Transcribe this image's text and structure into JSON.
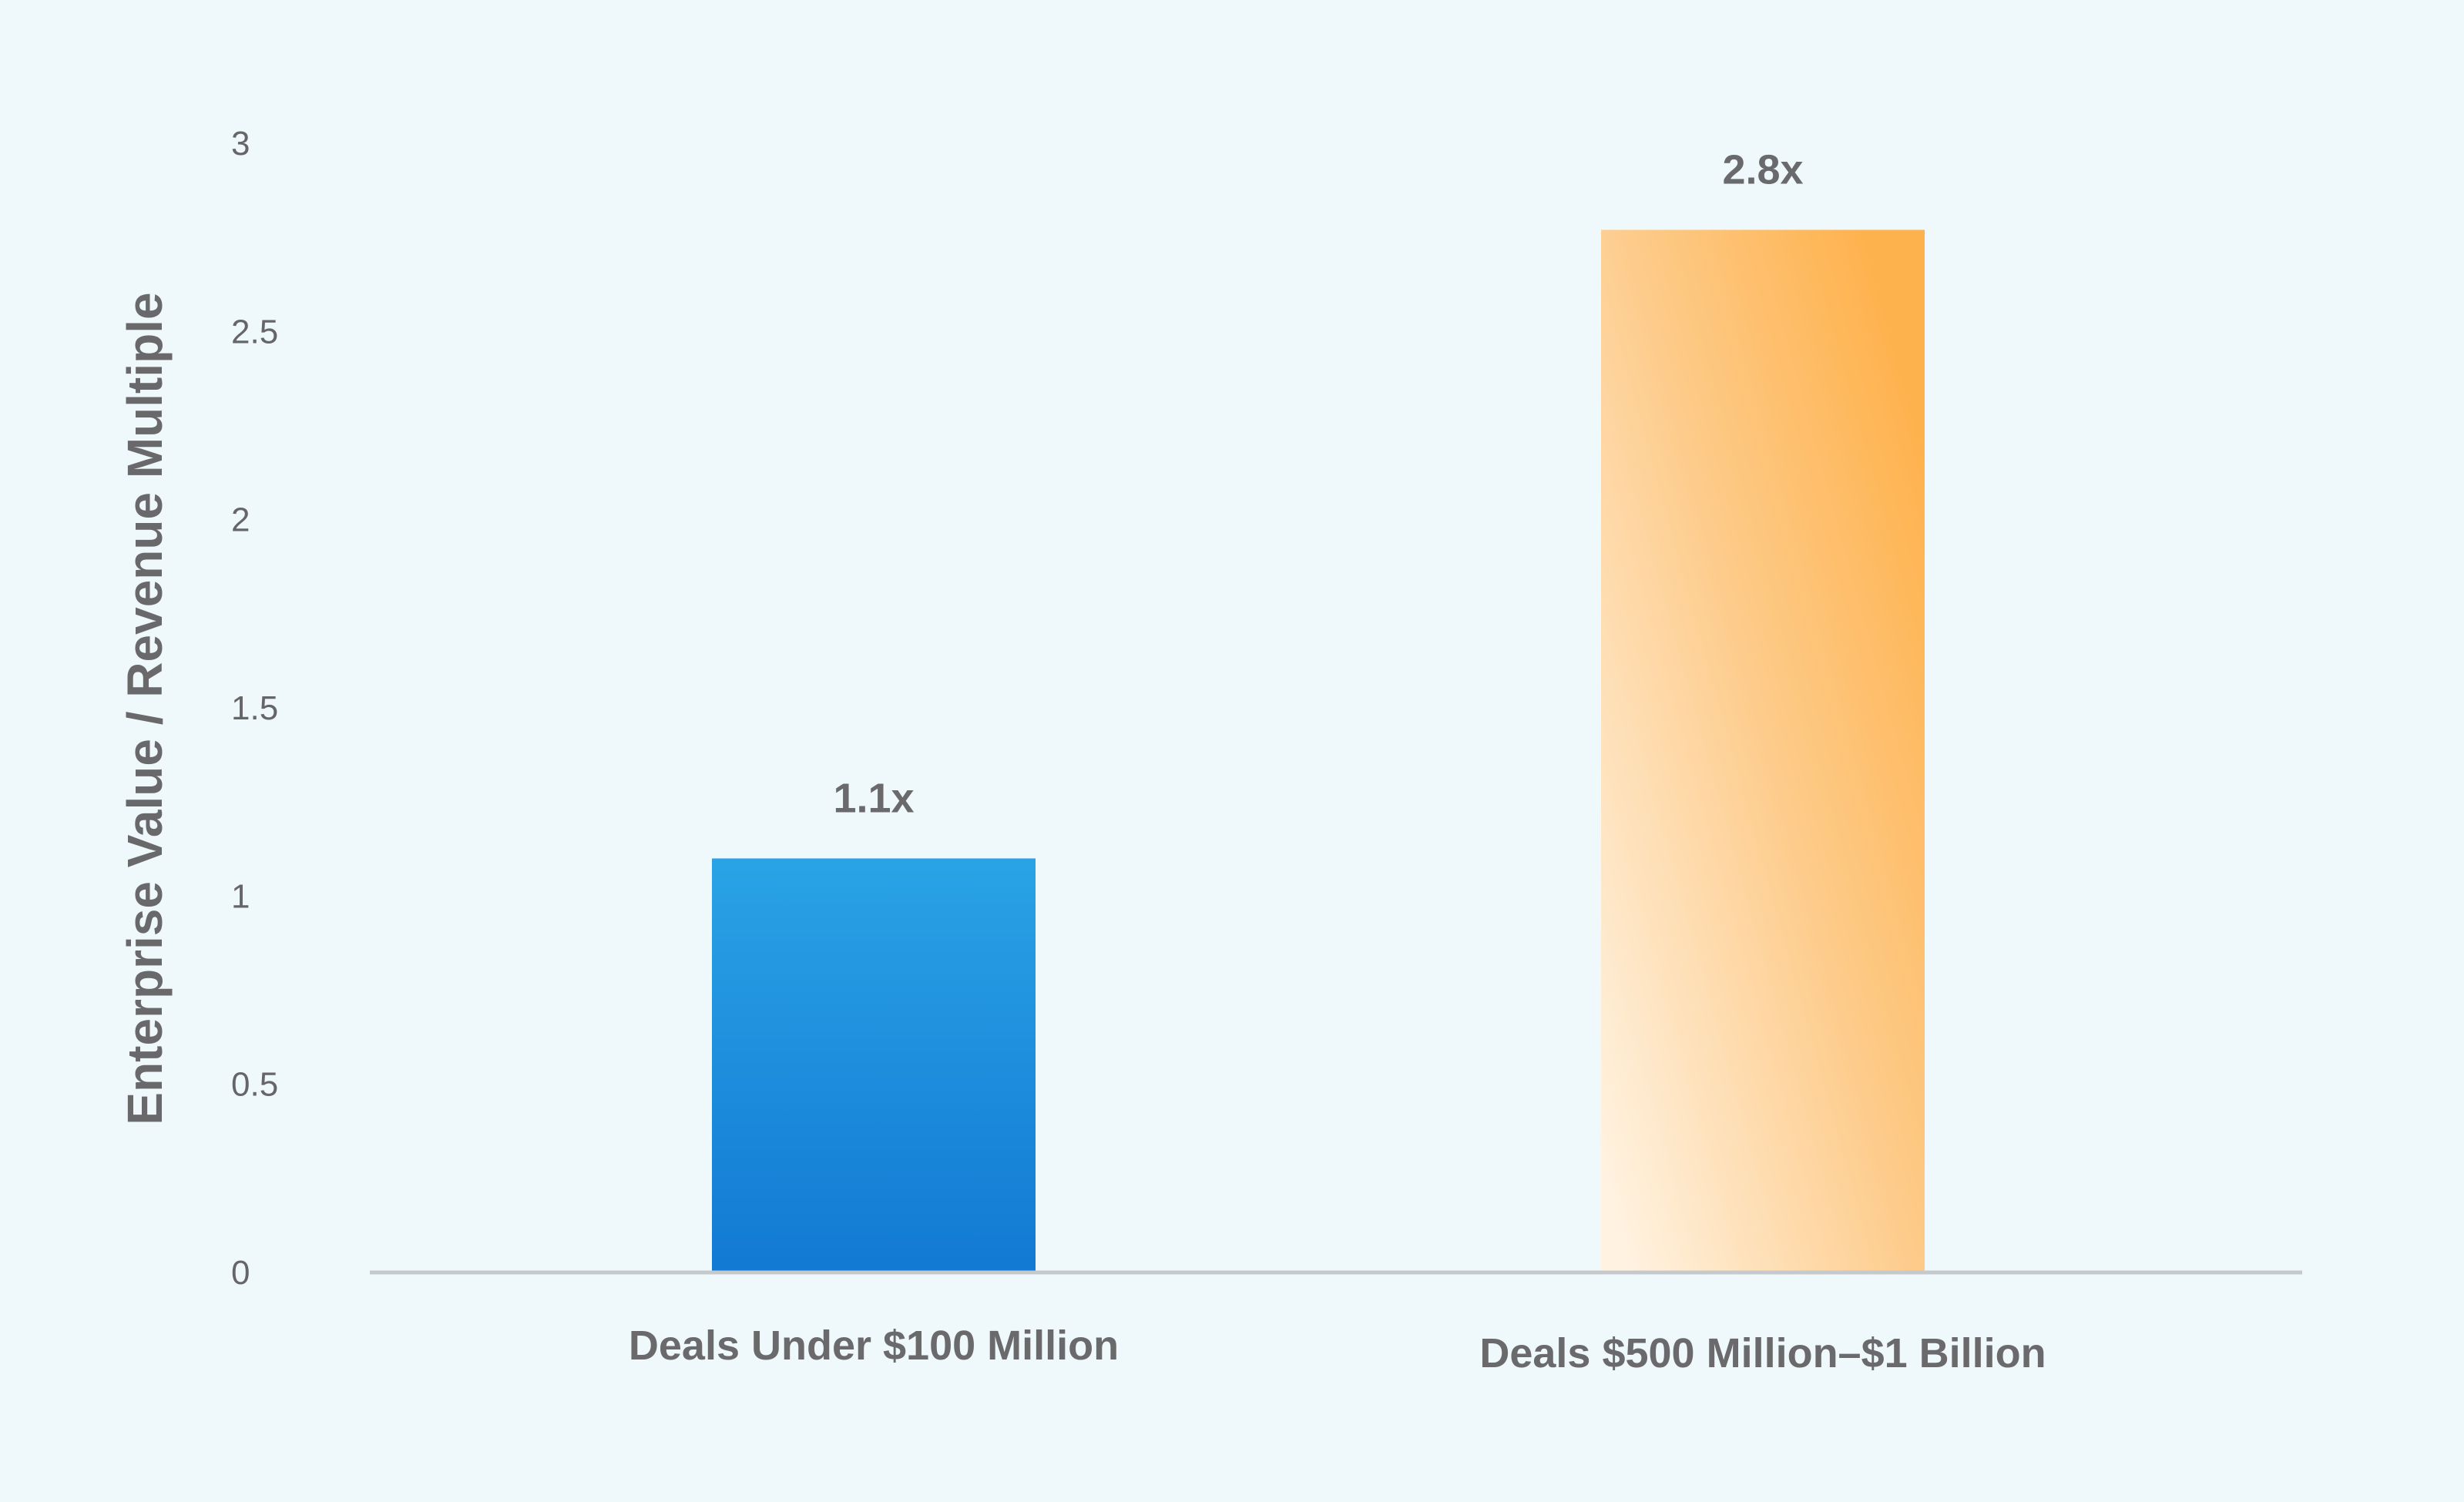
{
  "chart_data": {
    "type": "bar",
    "title": "",
    "xlabel": "",
    "ylabel": "Enterprise Value / Revenue Multiple",
    "ylim": [
      0,
      3
    ],
    "yticks": [
      "0",
      "0.5",
      "1",
      "1.5",
      "2",
      "2.5",
      "3"
    ],
    "grid": false,
    "legend": "none",
    "categories": [
      "Deals Under $100 Million",
      "Deals $500 Million–$1 Billion"
    ],
    "values": [
      1.1,
      2.77
    ],
    "data_labels": [
      "1.1x",
      "2.8x"
    ],
    "colors": {
      "bar_1_top": "#2aa3e6",
      "bar_1_bottom": "#1279d3",
      "bar_2_strong": "#feb24d",
      "bar_2_light": "#fff2e0",
      "axis_line": "#c6c9cb"
    }
  }
}
